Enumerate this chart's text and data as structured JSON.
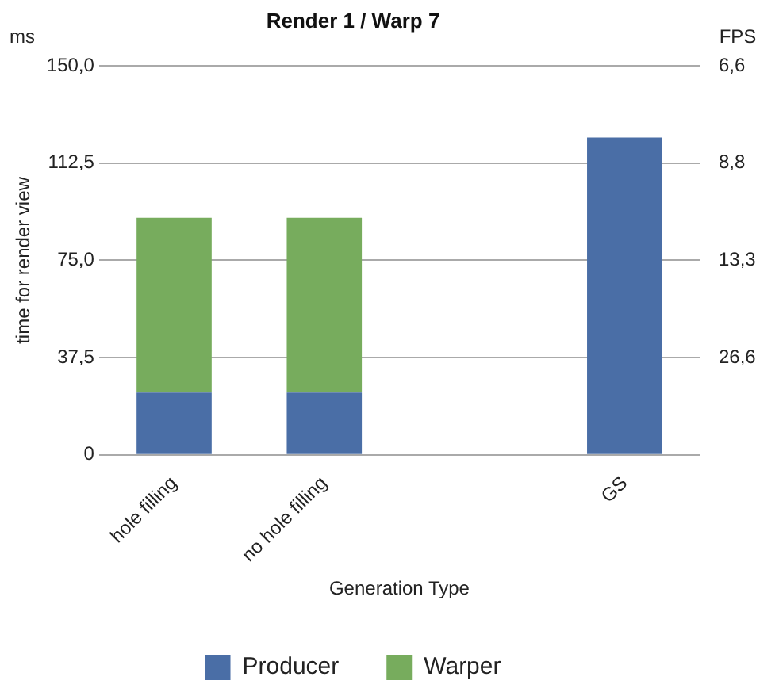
{
  "chart_data": {
    "type": "bar",
    "title": "Render 1 / Warp 7",
    "xlabel": "Generation Type",
    "ylabel": "time for render view",
    "y2label": "FPS",
    "annotations": [
      "ms",
      "6,6",
      "8,8",
      "13,3",
      "26,6"
    ],
    "categories": [
      "hole filling",
      "no hole filling",
      null,
      "GS"
    ],
    "stacked": true,
    "series": [
      {
        "name": "Producer",
        "color": "#4a6ea6",
        "values": [
          24,
          24,
          null,
          122.4
        ]
      },
      {
        "name": "Warper",
        "color": "#77ac5d",
        "values": [
          67.4,
          67.4,
          null,
          null
        ]
      }
    ],
    "ylim": [
      0,
      150
    ],
    "yticks": [
      0,
      {
        "value": 37.5,
        "label": "37,5"
      },
      {
        "value": 75,
        "label": "75,0"
      },
      {
        "value": 112.5,
        "label": "112,5"
      },
      {
        "value": 150,
        "label": "150,0"
      }
    ],
    "grid": "y",
    "legend": "bottom"
  }
}
